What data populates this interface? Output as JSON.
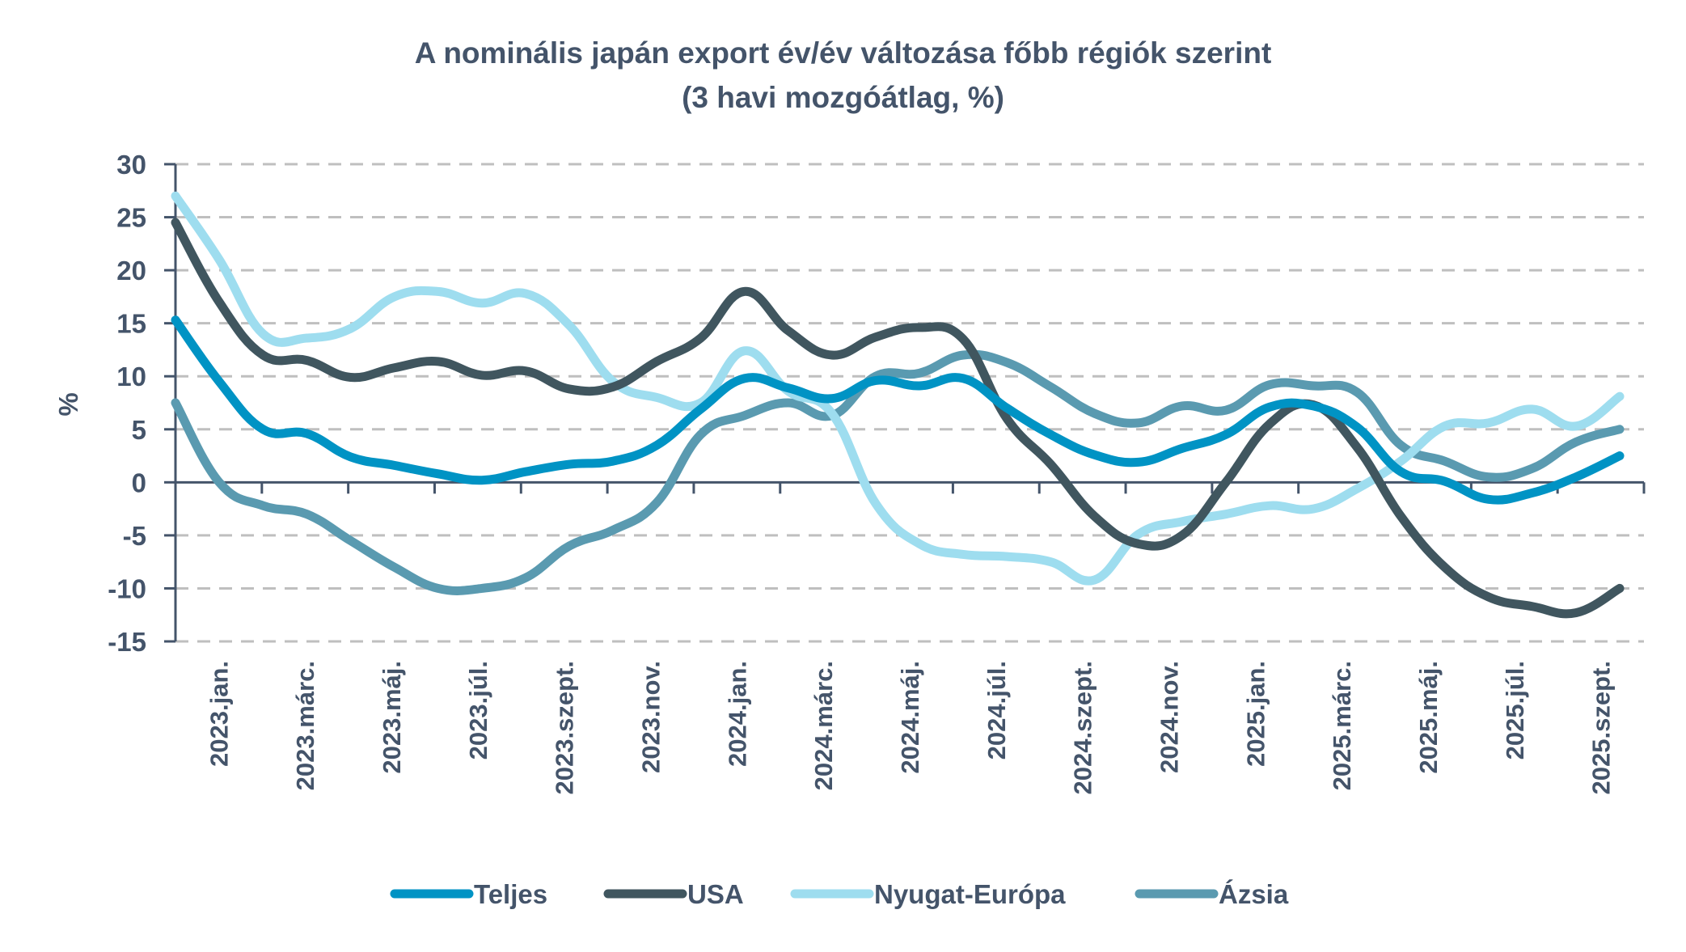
{
  "chart_data": {
    "type": "line",
    "title": "A nominális japán export év/év változása főbb régiók szerint",
    "subtitle": "(3 havi mozgóátlag, %)",
    "xlabel": "",
    "ylabel": "%",
    "ylim": [
      -15,
      30
    ],
    "yticks": [
      30,
      25,
      20,
      15,
      10,
      5,
      0,
      -5,
      -10,
      -15
    ],
    "grid": true,
    "legend_position": "bottom",
    "x": [
      "2023.jan.",
      "2023.febr.",
      "2023.márc.",
      "2023.ápr.",
      "2023.máj.",
      "2023.jún.",
      "2023.júl.",
      "2023.aug.",
      "2023.szept.",
      "2023.okt.",
      "2023.nov.",
      "2023.dec.",
      "2024.jan.",
      "2024.febr.",
      "2024.márc.",
      "2024.ápr.",
      "2024.máj.",
      "2024.jún.",
      "2024.júl.",
      "2024.aug.",
      "2024.szept.",
      "2024.okt.",
      "2024.nov.",
      "2024.dec.",
      "2025.jan.",
      "2025.febr.",
      "2025.márc.",
      "2025.ápr.",
      "2025.máj.",
      "2025.jún.",
      "2025.júl.",
      "2025.aug.",
      "2025.szept.",
      "2025.okt."
    ],
    "x_tick_labels": [
      "2023.jan.",
      "2023.márc.",
      "2023.máj.",
      "2023.júl.",
      "2023.szept.",
      "2023.nov.",
      "2024.jan.",
      "2024.márc.",
      "2024.máj.",
      "2024.júl.",
      "2024.szept.",
      "2024.nov.",
      "2025.jan.",
      "2025.márc.",
      "2025.máj.",
      "2025.júl.",
      "2025.szept."
    ],
    "series": [
      {
        "name": "Teljes",
        "color": "#0093C4",
        "values": [
          15.3,
          9.5,
          5.0,
          4.6,
          2.4,
          1.6,
          0.8,
          0.2,
          1.0,
          1.7,
          2.0,
          3.5,
          6.9,
          9.8,
          8.9,
          7.9,
          9.6,
          9.1,
          9.8,
          7.0,
          4.5,
          2.6,
          1.9,
          3.2,
          4.5,
          7.1,
          7.2,
          5.2,
          1.0,
          0.1,
          -1.6,
          -1.0,
          0.5,
          2.5
        ]
      },
      {
        "name": "USA",
        "color": "#40565F",
        "values": [
          24.5,
          17.0,
          12.0,
          11.5,
          9.9,
          10.8,
          11.4,
          10.1,
          10.5,
          8.8,
          9.0,
          11.4,
          13.6,
          18.0,
          14.3,
          12.0,
          13.7,
          14.6,
          13.5,
          6.0,
          1.7,
          -3.2,
          -5.8,
          -5.0,
          0.0,
          5.5,
          7.3,
          3.3,
          -3.2,
          -8.0,
          -10.8,
          -11.7,
          -12.3,
          -10.0
        ]
      },
      {
        "name": "Nyugat-Európa",
        "color": "#9EDDEF",
        "values": [
          27.0,
          21.0,
          14.0,
          13.6,
          14.5,
          17.5,
          18.0,
          16.9,
          17.8,
          14.8,
          9.5,
          8.0,
          7.5,
          12.4,
          8.6,
          6.5,
          -2.0,
          -5.8,
          -6.8,
          -7.0,
          -7.5,
          -9.2,
          -4.9,
          -3.7,
          -3.0,
          -2.2,
          -2.5,
          -0.6,
          2.0,
          5.3,
          5.6,
          6.9,
          5.3,
          8.1
        ]
      },
      {
        "name": "Ázsia",
        "color": "#5A9AB0",
        "values": [
          7.5,
          0.0,
          -2.2,
          -3.0,
          -5.5,
          -8.0,
          -10.0,
          -10.0,
          -9.0,
          -6.0,
          -4.5,
          -1.9,
          4.5,
          6.3,
          7.5,
          6.3,
          10.0,
          10.3,
          12.0,
          11.3,
          9.0,
          6.5,
          5.6,
          7.2,
          6.8,
          9.2,
          9.1,
          8.5,
          3.5,
          2.0,
          0.5,
          1.3,
          3.8,
          5.0
        ]
      }
    ]
  },
  "colors": {
    "text": "#44546A",
    "grid": "#BFBFBF",
    "axis": "#44546A"
  }
}
